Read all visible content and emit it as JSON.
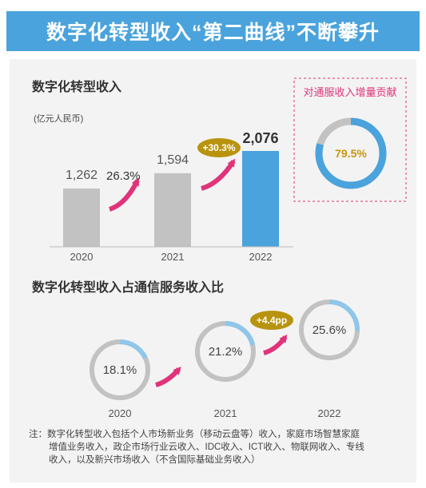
{
  "banner": {
    "title": "数字化转型收入“第二曲线”不断攀升"
  },
  "chart_data": [
    {
      "type": "bar",
      "title": "数字化转型收入",
      "unit": "(亿元人民币)",
      "categories": [
        "2020",
        "2021",
        "2022"
      ],
      "values": [
        1262,
        1594,
        2076
      ],
      "value_labels": [
        "1,262",
        "1,594",
        "2,076"
      ],
      "growth_labels": [
        "26.3%",
        "+30.3%"
      ],
      "colors": {
        "bar": "#c2c2c2",
        "bar_highlight": "#4aa3dc",
        "arrow": "#e0337a",
        "badge": "#b8930e"
      }
    },
    {
      "type": "pie",
      "title": "对通服收入增量贡献",
      "value": 79.5,
      "label": "79.5%",
      "colors": {
        "fill": "#4aa3dc",
        "track": "#c2c2c2",
        "border": "#e0337a",
        "text": "#c8960a"
      }
    },
    {
      "type": "pie",
      "title": "数字化转型收入占通信服务收入比",
      "categories": [
        "2020",
        "2021",
        "2022"
      ],
      "values": [
        18.1,
        21.2,
        25.6
      ],
      "value_labels": [
        "18.1%",
        "21.2%",
        "25.6%"
      ],
      "growth_labels": [
        "+4.4pp"
      ],
      "colors": {
        "fill": "#8fc6ea",
        "track": "#c2c2c2",
        "arrow": "#e0337a",
        "badge": "#b8930e"
      }
    }
  ],
  "note": {
    "lines": [
      "注：数字化转型收入包括个人市场新业务（移动云盘等）收入，家庭市场智慧家庭",
      "增值业务收入，政企市场行业云收入、IDC收入、ICT收入、物联网收入、专线",
      "收入，以及新兴市场收入（不含国际基础业务收入）"
    ]
  }
}
